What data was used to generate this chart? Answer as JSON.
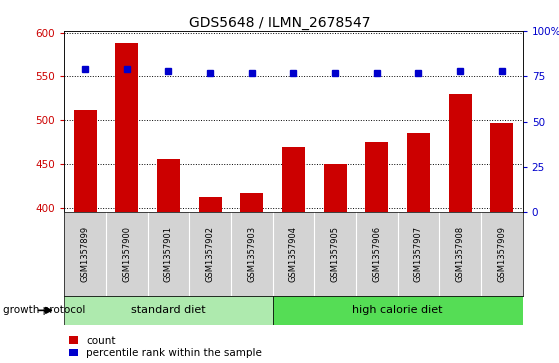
{
  "title": "GDS5648 / ILMN_2678547",
  "samples": [
    "GSM1357899",
    "GSM1357900",
    "GSM1357901",
    "GSM1357902",
    "GSM1357903",
    "GSM1357904",
    "GSM1357905",
    "GSM1357906",
    "GSM1357907",
    "GSM1357908",
    "GSM1357909"
  ],
  "counts": [
    512,
    588,
    456,
    412,
    417,
    469,
    450,
    475,
    485,
    530,
    497
  ],
  "percentile_ranks": [
    79,
    79,
    78,
    77,
    77,
    77,
    77,
    77,
    77,
    78,
    78
  ],
  "ylim_left": [
    395,
    602
  ],
  "ylim_right": [
    0,
    100
  ],
  "yticks_left": [
    400,
    450,
    500,
    550,
    600
  ],
  "yticks_right": [
    0,
    25,
    50,
    75,
    100
  ],
  "bar_color": "#cc0000",
  "square_color": "#0000cc",
  "grid_color": "#000000",
  "n_standard": 5,
  "n_high_cal": 6,
  "standard_diet_label": "standard diet",
  "high_calorie_label": "high calorie diet",
  "growth_protocol_label": "growth protocol",
  "legend_count_label": "count",
  "legend_percentile_label": "percentile rank within the sample",
  "axis_bg_color": "#d3d3d3",
  "standard_diet_bg": "#aeeaae",
  "high_calorie_bg": "#55dd55",
  "title_fontsize": 10,
  "bar_width": 0.55
}
